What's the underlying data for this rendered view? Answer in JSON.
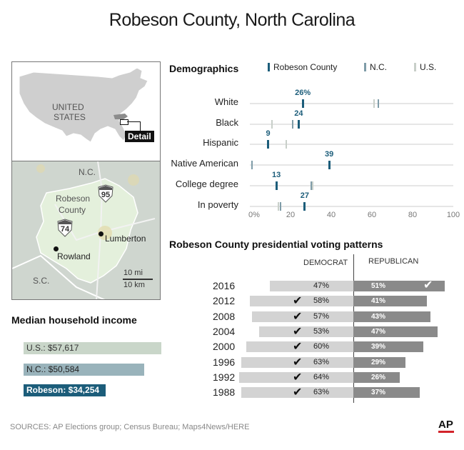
{
  "title": "Robeson County, North Carolina",
  "map": {
    "us_label_1": "UNITED",
    "us_label_2": "STATES",
    "detail_label": "Detail",
    "nc_label": "N.C.",
    "sc_label": "S.C.",
    "county_label_1": "Robeson",
    "county_label_2": "County",
    "interstate_74": "74",
    "interstate_95": "95",
    "city_lumberton": "Lumberton",
    "city_rowland": "Rowland",
    "scale_mi": "10 mi",
    "scale_km": "10 km"
  },
  "colors": {
    "robeson": "#1c5d7a",
    "nc": "#7f9ca8",
    "us": "#c8cfc9",
    "dem_bar": "#d3d3d3",
    "rep_bar": "#8a8a8a",
    "map_land": "#cfcfcf",
    "county_fill": "#e4f0dc"
  },
  "income": {
    "title": "Median household income",
    "bars": [
      {
        "label": "U.S.: $57,617",
        "value": 57617,
        "color": "#c9d6c9",
        "text_color": "#333"
      },
      {
        "label": "N.C.: $50,584",
        "value": 50584,
        "color": "#99b3bb",
        "text_color": "#222"
      },
      {
        "label": "Robeson: $34,254",
        "value": 34254,
        "color": "#1c5d7a",
        "text_color": "#fff"
      }
    ]
  },
  "demographics": {
    "title": "Demographics",
    "legend": [
      "Robeson County",
      "N.C.",
      "U.S."
    ],
    "ticks": [
      "0%",
      "20",
      "40",
      "60",
      "80",
      "100"
    ]
  },
  "voting": {
    "title": "Robeson County presidential voting patterns",
    "dem_header": "DEMOCRAT",
    "rep_header": "REPUBLICAN"
  },
  "sources": "SOURCES: AP Elections group; Census Bureau; Maps4News/HERE",
  "logo": "AP",
  "chart_data": [
    {
      "type": "bar",
      "title": "Median household income",
      "categories": [
        "U.S.",
        "N.C.",
        "Robeson"
      ],
      "values": [
        57617,
        50584,
        34254
      ]
    },
    {
      "type": "scatter",
      "title": "Demographics",
      "xlim": [
        0,
        100
      ],
      "categories": [
        "White",
        "Black",
        "Hispanic",
        "Native American",
        "College degree",
        "In poverty"
      ],
      "series": [
        {
          "name": "Robeson County",
          "values": [
            26,
            24,
            9,
            39,
            13,
            27
          ]
        },
        {
          "name": "N.C.",
          "values": [
            63,
            21,
            9,
            1,
            30,
            15
          ]
        },
        {
          "name": "U.S.",
          "values": [
            61,
            11,
            18,
            1,
            31,
            14
          ]
        }
      ],
      "data_labels": [
        "26%",
        "24",
        "9",
        "39",
        "13",
        "27"
      ]
    },
    {
      "type": "bar",
      "title": "Robeson County presidential voting patterns",
      "categories": [
        "2016",
        "2012",
        "2008",
        "2004",
        "2000",
        "1996",
        "1992",
        "1988"
      ],
      "series": [
        {
          "name": "DEMOCRAT",
          "values": [
            47,
            58,
            57,
            53,
            60,
            63,
            64,
            63
          ]
        },
        {
          "name": "REPUBLICAN",
          "values": [
            51,
            41,
            43,
            47,
            39,
            29,
            26,
            37
          ]
        }
      ],
      "dem_labels": [
        "47%",
        "58%",
        "57%",
        "53%",
        "60%",
        "63%",
        "64%",
        "63%"
      ],
      "rep_labels": [
        "51%",
        "41%",
        "43%",
        "47%",
        "39%",
        "29%",
        "26%",
        "37%"
      ],
      "winners": [
        "REPUBLICAN",
        "DEMOCRAT",
        "DEMOCRAT",
        "DEMOCRAT",
        "DEMOCRAT",
        "DEMOCRAT",
        "DEMOCRAT",
        "DEMOCRAT"
      ]
    }
  ]
}
